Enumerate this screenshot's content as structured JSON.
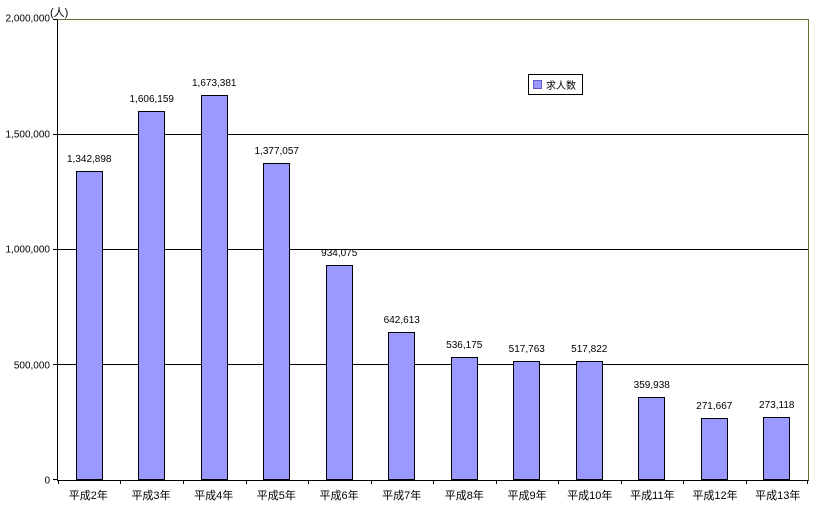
{
  "chart_data": {
    "type": "bar",
    "title": "",
    "unit_label": "(人)",
    "categories": [
      "平成2年",
      "平成3年",
      "平成4年",
      "平成5年",
      "平成6年",
      "平成7年",
      "平成8年",
      "平成9年",
      "平成10年",
      "平成11年",
      "平成12年",
      "平成13年"
    ],
    "series": [
      {
        "name": "求人数",
        "values": [
          1342898,
          1606159,
          1673381,
          1377057,
          934075,
          642613,
          536175,
          517763,
          517822,
          359938,
          271667,
          273118
        ],
        "value_labels": [
          "1,342,898",
          "1,606,159",
          "1,673,381",
          "1,377,057",
          "934,075",
          "642,613",
          "536,175",
          "517,763",
          "517,822",
          "359,938",
          "271,667",
          "273,118"
        ]
      }
    ],
    "ylim": [
      0,
      2000000
    ],
    "y_ticks": [
      {
        "value": 0,
        "label": "0"
      },
      {
        "value": 500000,
        "label": "500,000"
      },
      {
        "value": 1000000,
        "label": "1,000,000"
      },
      {
        "value": 1500000,
        "label": "1,500,000"
      },
      {
        "value": 2000000,
        "label": "2,000,000"
      }
    ],
    "grid": true,
    "legend_position": "inside-top-center-right"
  },
  "legend": {
    "label": "求人数"
  },
  "colors": {
    "bar_fill": "#9999FF",
    "bar_border": "#000000",
    "gridline": "#000000",
    "frame_top_right": "#6F6B2E",
    "axis": "#000000",
    "background": "#FFFFFF"
  }
}
